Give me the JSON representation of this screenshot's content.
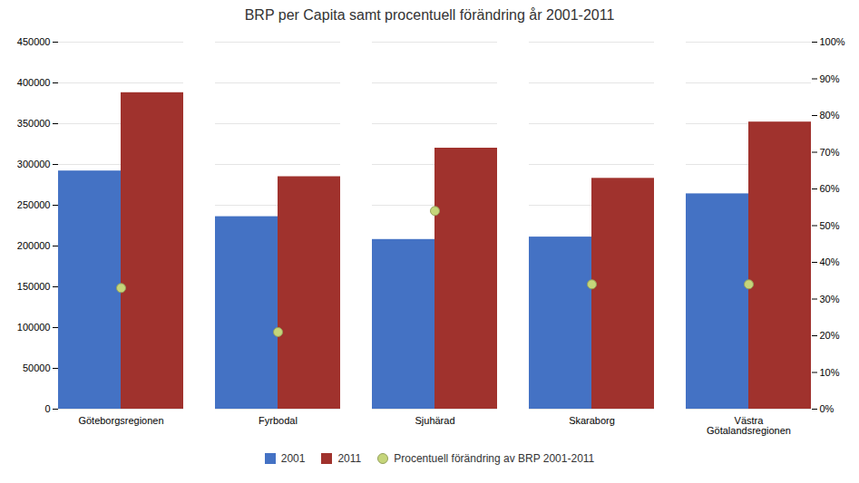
{
  "chart_data": {
    "type": "bar",
    "title": "BRP per Capita samt procentuell förändring år 2001-2011",
    "categories": [
      "Göteborgsregionen",
      "Fyrbodal",
      "Sjuhärad",
      "Skaraborg",
      "Västra\nGötalandsregionen"
    ],
    "series": [
      {
        "name": "2001",
        "color": "#4472C4",
        "values": [
          292000,
          236000,
          208000,
          211000,
          264000
        ]
      },
      {
        "name": "2011",
        "color": "#A0322D",
        "values": [
          388000,
          285000,
          320000,
          283000,
          352000
        ]
      },
      {
        "name": "Procentuell förändring av BRP 2001-2011",
        "type": "scatter",
        "axis": "y2",
        "color": "#C5D57A",
        "marker": "o",
        "values": [
          0.33,
          0.21,
          0.54,
          0.34,
          0.34
        ]
      }
    ],
    "ylim": [
      0,
      450000
    ],
    "yticks": [
      0,
      50000,
      100000,
      150000,
      200000,
      250000,
      300000,
      350000,
      400000,
      450000
    ],
    "y2lim": [
      0,
      1.0
    ],
    "y2ticks": [
      {
        "value": 0.0,
        "label": "0%"
      },
      {
        "value": 0.1,
        "label": "10%"
      },
      {
        "value": 0.2,
        "label": "20%"
      },
      {
        "value": 0.3,
        "label": "30%"
      },
      {
        "value": 0.4,
        "label": "40%"
      },
      {
        "value": 0.5,
        "label": "50%"
      },
      {
        "value": 0.6,
        "label": "60%"
      },
      {
        "value": 0.7,
        "label": "70%"
      },
      {
        "value": 0.8,
        "label": "80%"
      },
      {
        "value": 0.9,
        "label": "90%"
      },
      {
        "value": 1.0,
        "label": "100%"
      }
    ],
    "grid": true,
    "legend": "bottom"
  }
}
